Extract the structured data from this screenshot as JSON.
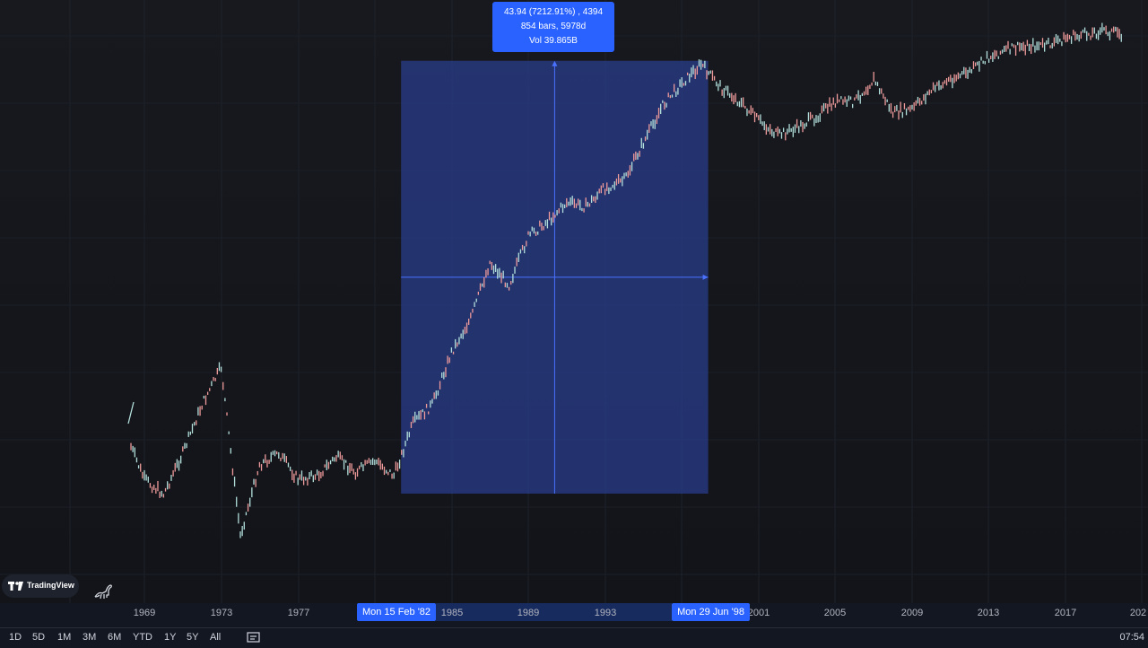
{
  "tooltip": {
    "line1": "43.94 (7212.91%) , 4394",
    "line2": "854 bars, 5978d",
    "line3": "Vol 39.865B"
  },
  "time_axis": {
    "ticks": [
      "1969",
      "1973",
      "1977",
      "1985",
      "1989",
      "1993",
      "2001",
      "2005",
      "2009",
      "2013",
      "2017",
      "202"
    ],
    "range_start": "Mon 15 Feb '82",
    "range_end": "Mon 29 Jun '98"
  },
  "branding": {
    "label": "TradingView"
  },
  "toolbar": {
    "intervals": [
      "1D",
      "5D",
      "1M",
      "3M",
      "6M",
      "YTD",
      "1Y",
      "5Y",
      "All"
    ],
    "clock": "07:54"
  },
  "icons": {
    "logo": "tradingview-logo-icon",
    "mascot": "dinosaur-icon",
    "compare": "compare-icon"
  },
  "colors": {
    "background": "#131722",
    "accent": "#2962ff",
    "measure_fill": "#2a3f8f",
    "bull": "#b2dfdb",
    "bear": "#ef9a9a"
  },
  "chart_data": {
    "type": "line",
    "x": [
      1968,
      1969,
      1970,
      1971,
      1972,
      1973,
      1974,
      1975,
      1976,
      1977,
      1978,
      1979,
      1980,
      1981,
      1982,
      1983,
      1984,
      1985,
      1986,
      1987,
      1988,
      1989,
      1990,
      1991,
      1992,
      1993,
      1994,
      1995,
      1996,
      1997,
      1998,
      1999,
      2000,
      2001,
      2002,
      2003,
      2004,
      2005,
      2006,
      2007,
      2008,
      2009,
      2010,
      2011,
      2012,
      2013,
      2014,
      2015,
      2016,
      2017,
      2018,
      2019,
      2020
    ],
    "series": [
      {
        "values": [
          3.07,
          2.82,
          2.74,
          2.96,
          3.22,
          3.42,
          2.52,
          2.9,
          2.96,
          2.82,
          2.84,
          2.94,
          2.86,
          2.92,
          2.84,
          3.12,
          3.22,
          3.5,
          3.68,
          3.98,
          3.86,
          4.12,
          4.2,
          4.3,
          4.28,
          4.38,
          4.42,
          4.62,
          4.82,
          4.94,
          5.04,
          4.92,
          4.84,
          4.74,
          4.66,
          4.7,
          4.76,
          4.84,
          4.84,
          4.96,
          4.78,
          4.8,
          4.9,
          4.96,
          5.0,
          5.08,
          5.12,
          5.14,
          5.14,
          5.18,
          5.2,
          5.22,
          5.2
        ]
      }
    ],
    "xlabel": "",
    "ylabel": "",
    "grid": true,
    "measure_range": {
      "start": 1982,
      "end": 1998
    }
  }
}
